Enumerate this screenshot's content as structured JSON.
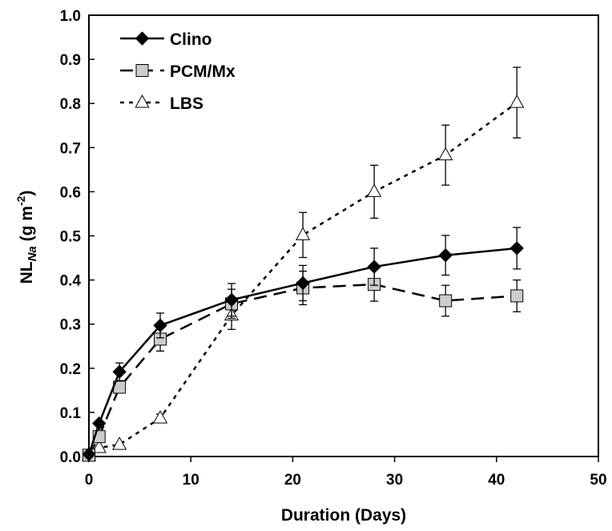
{
  "chart_data": {
    "type": "line",
    "xlabel": "Duration (Days)",
    "ylabel": {
      "main": "NL",
      "subscript": "Na",
      "unit_open": " (g m",
      "unit_sup": "-2",
      "unit_close": ")"
    },
    "xlim": [
      0,
      50
    ],
    "ylim": [
      0,
      1.0
    ],
    "xticks": [
      "0",
      "10",
      "20",
      "30",
      "40",
      "50"
    ],
    "yticks": [
      "0.0",
      "0.1",
      "0.2",
      "0.3",
      "0.4",
      "0.5",
      "0.6",
      "0.7",
      "0.8",
      "0.9",
      "1.0"
    ],
    "grid": false,
    "legend_position": "top-left",
    "series": [
      {
        "name": "Clino",
        "marker": "diamond",
        "line_style": "solid",
        "marker_fill": "#000000",
        "x": [
          0,
          1,
          3,
          7,
          14,
          21,
          28,
          35,
          42
        ],
        "y": [
          0.005,
          0.075,
          0.192,
          0.297,
          0.355,
          0.393,
          0.43,
          0.456,
          0.472
        ],
        "err": [
          0,
          0,
          0.02,
          0.028,
          0.037,
          0.04,
          0.042,
          0.045,
          0.047
        ]
      },
      {
        "name": "PCM/Mx",
        "marker": "square",
        "line_style": "dashed",
        "marker_fill": "#cccccc",
        "x": [
          0,
          1,
          3,
          7,
          14,
          21,
          28,
          35,
          42
        ],
        "y": [
          0.003,
          0.045,
          0.157,
          0.266,
          0.346,
          0.382,
          0.39,
          0.353,
          0.364
        ],
        "err": [
          0,
          0,
          0,
          0.027,
          0.033,
          0.038,
          0.038,
          0.035,
          0.036
        ]
      },
      {
        "name": "LBS",
        "marker": "triangle",
        "line_style": "dotted",
        "marker_fill": "#ffffff",
        "x": [
          0,
          1,
          3,
          7,
          14,
          21,
          28,
          35,
          42
        ],
        "y": [
          0.002,
          0.02,
          0.027,
          0.087,
          0.32,
          0.502,
          0.6,
          0.683,
          0.802
        ],
        "err": [
          0,
          0,
          0,
          0.009,
          0.032,
          0.051,
          0.06,
          0.068,
          0.08
        ]
      }
    ]
  }
}
